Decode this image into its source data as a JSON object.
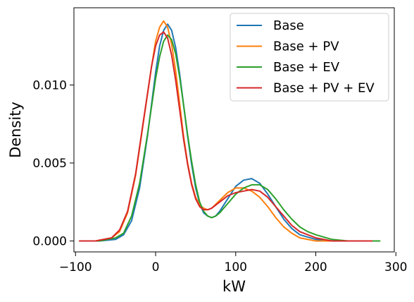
{
  "chart_data": {
    "type": "line",
    "title": "",
    "xlabel": "kW",
    "ylabel": "Density",
    "xlim": [
      -102,
      298
    ],
    "ylim": [
      -0.0007,
      0.01495
    ],
    "xticks": [
      -100,
      0,
      100,
      200,
      300
    ],
    "xtick_labels": [
      "−100",
      "0",
      "100",
      "200",
      "300"
    ],
    "yticks": [
      0.0,
      0.005,
      0.01
    ],
    "ytick_labels": [
      "0.000",
      "0.005",
      "0.010"
    ],
    "grid": false,
    "legend_position": "top-right",
    "series": [
      {
        "name": "Base",
        "color": "#1f77b4",
        "x": [
          -90,
          -70,
          -50,
          -40,
          -30,
          -20,
          -10,
          0,
          5,
          10,
          15,
          20,
          25,
          30,
          35,
          40,
          45,
          50,
          55,
          60,
          65,
          70,
          75,
          80,
          90,
          100,
          110,
          120,
          130,
          140,
          150,
          160,
          170,
          180,
          200,
          220,
          240,
          260,
          270
        ],
        "y": [
          0.0,
          0.0,
          0.0001,
          0.0004,
          0.0013,
          0.0034,
          0.0068,
          0.0108,
          0.0125,
          0.0135,
          0.0139,
          0.0135,
          0.0124,
          0.0107,
          0.0087,
          0.0067,
          0.0049,
          0.0034,
          0.0024,
          0.0018,
          0.0016,
          0.0015,
          0.0016,
          0.0019,
          0.0027,
          0.0035,
          0.0039,
          0.004,
          0.0037,
          0.003,
          0.0022,
          0.0014,
          0.0008,
          0.0004,
          0.0001,
          0.0,
          0.0,
          0.0,
          0.0
        ]
      },
      {
        "name": "Base + PV",
        "color": "#ff7f0e",
        "x": [
          -95,
          -75,
          -55,
          -45,
          -35,
          -25,
          -15,
          -5,
          0,
          5,
          10,
          15,
          20,
          25,
          30,
          35,
          40,
          45,
          50,
          55,
          60,
          65,
          70,
          80,
          90,
          100,
          110,
          120,
          130,
          140,
          150,
          160,
          170,
          180,
          200,
          220,
          240,
          260
        ],
        "y": [
          0.0,
          0.0,
          0.0002,
          0.0006,
          0.0018,
          0.0042,
          0.0077,
          0.0112,
          0.0128,
          0.0137,
          0.0141,
          0.0137,
          0.0126,
          0.0109,
          0.0088,
          0.0067,
          0.005,
          0.0037,
          0.0028,
          0.0023,
          0.0021,
          0.002,
          0.0021,
          0.0026,
          0.0031,
          0.0034,
          0.0034,
          0.0032,
          0.0028,
          0.0022,
          0.0015,
          0.0009,
          0.0005,
          0.0002,
          0.0,
          0.0,
          0.0,
          0.0
        ]
      },
      {
        "name": "Base + EV",
        "color": "#2ca02c",
        "x": [
          -90,
          -70,
          -50,
          -40,
          -30,
          -20,
          -10,
          0,
          5,
          10,
          15,
          20,
          25,
          30,
          35,
          40,
          45,
          50,
          55,
          60,
          65,
          70,
          75,
          80,
          90,
          100,
          110,
          120,
          130,
          140,
          150,
          160,
          170,
          180,
          190,
          200,
          220,
          240,
          260,
          280
        ],
        "y": [
          0.0,
          0.0,
          0.0002,
          0.0005,
          0.0016,
          0.0037,
          0.0069,
          0.0104,
          0.0118,
          0.0128,
          0.0132,
          0.0129,
          0.012,
          0.0105,
          0.0087,
          0.0068,
          0.0051,
          0.0036,
          0.0025,
          0.0019,
          0.0016,
          0.0015,
          0.0016,
          0.0018,
          0.0024,
          0.003,
          0.0034,
          0.0036,
          0.0036,
          0.0033,
          0.0027,
          0.002,
          0.0014,
          0.0009,
          0.0006,
          0.0004,
          0.0001,
          0.0,
          0.0,
          0.0
        ]
      },
      {
        "name": "Base + PV + EV",
        "color": "#d62728",
        "x": [
          -95,
          -75,
          -55,
          -45,
          -35,
          -25,
          -15,
          -5,
          0,
          5,
          10,
          15,
          20,
          25,
          30,
          35,
          40,
          45,
          50,
          55,
          60,
          65,
          70,
          80,
          90,
          100,
          110,
          120,
          130,
          140,
          150,
          160,
          170,
          180,
          200,
          220,
          240,
          260,
          270
        ],
        "y": [
          0.0,
          0.0,
          0.0002,
          0.0007,
          0.0019,
          0.0043,
          0.0078,
          0.0112,
          0.0125,
          0.0132,
          0.0134,
          0.013,
          0.0119,
          0.0103,
          0.0084,
          0.0065,
          0.0049,
          0.0036,
          0.0027,
          0.0022,
          0.002,
          0.002,
          0.0021,
          0.0025,
          0.0029,
          0.0031,
          0.0032,
          0.0033,
          0.0032,
          0.0028,
          0.0022,
          0.0016,
          0.001,
          0.0006,
          0.0002,
          0.0,
          0.0,
          0.0,
          0.0
        ]
      }
    ]
  }
}
